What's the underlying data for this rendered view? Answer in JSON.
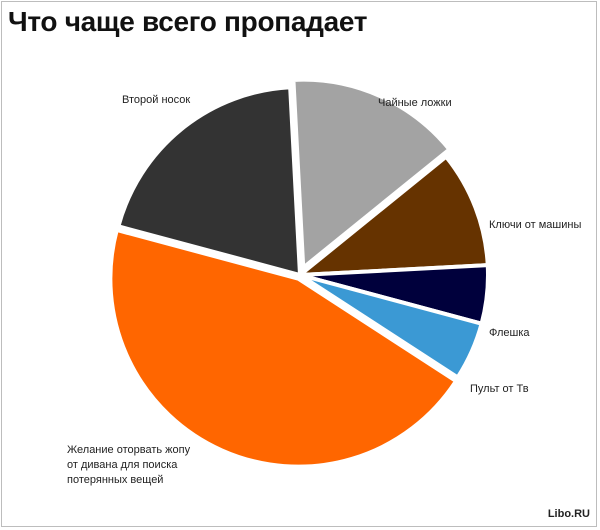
{
  "header": {
    "title": "Что чаще всего пропадает"
  },
  "watermark": "Libo.RU",
  "chart_data": {
    "type": "pie",
    "title": "Что чаще всего пропадает",
    "slices": [
      {
        "label": "Второй носок",
        "value": 20,
        "color": "#333333"
      },
      {
        "label": "Чайные ложки",
        "value": 15,
        "color": "#a3a3a3"
      },
      {
        "label": "Ключи от машины",
        "value": 10,
        "color": "#663300"
      },
      {
        "label": "Флешка",
        "value": 5,
        "color": "#00003c"
      },
      {
        "label": "Пульт от Тв",
        "value": 5,
        "color": "#3b99d4"
      },
      {
        "label": "Желание оторвать жопу от дивана для поиска потерянных вещей",
        "value": 45,
        "color": "#ff6600"
      }
    ]
  }
}
